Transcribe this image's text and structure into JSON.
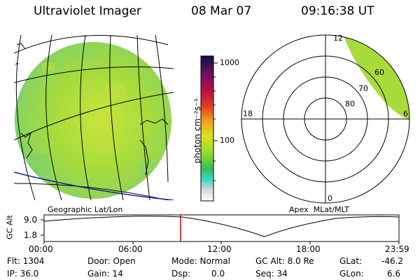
{
  "header": {
    "title": "Ultraviolet Imager",
    "date": "08 Mar 07",
    "time": "09:16:38 UT"
  },
  "colorbar": {
    "unit_label": "photon cm⁻²s⁻¹",
    "ticks": [
      "1000",
      "100"
    ]
  },
  "left_panel": {
    "caption": "Geographic Lat/Lon"
  },
  "right_panel": {
    "caption": "Apex  MLat/MLT",
    "mlt_labels": [
      "12",
      "18",
      "6",
      "0"
    ],
    "mlat_labels": [
      "80",
      "70",
      "60"
    ]
  },
  "altitude_plot": {
    "ylabel": "GC Alt",
    "yticks": [
      "9.0",
      "1.8"
    ],
    "xticks": [
      "00:00",
      "06:00",
      "12:00",
      "18:00",
      "23:59"
    ]
  },
  "status": {
    "flt": "Flt: 1304",
    "ip": "IP: 36.0",
    "door": "Door: Open",
    "gain": "Gain: 14",
    "mode": "Mode: Normal",
    "dsp_label": "Dsp:",
    "dsp_value": "0.0",
    "gc_alt": "GC Alt: 8.0 Re",
    "seq": "Seq: 34",
    "glat_label": "GLat:",
    "glat_value": "-46.2",
    "glon_label": "GLon:",
    "glon_value": "6.6"
  },
  "colors": {
    "image_base": "#a8e03a",
    "grid": "#000000",
    "marker": "#cc0000",
    "coast": "#1a1aa0"
  }
}
